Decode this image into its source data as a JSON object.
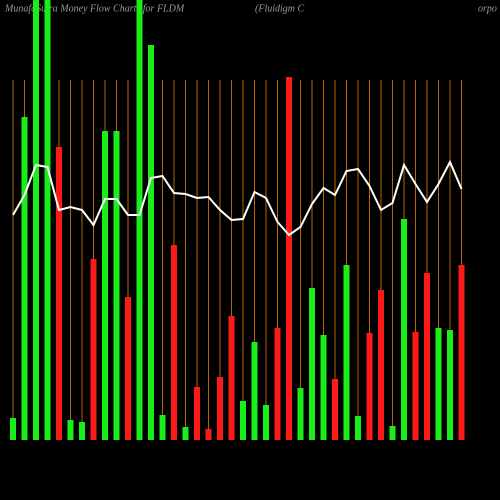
{
  "chart_data": {
    "type": "bar",
    "title": "MunafaSutra  Money Flow  Charts for FLDM",
    "subtitle": "(Fluidigm C",
    "subtitle2": "orpo",
    "categories": [
      null,
      null,
      null,
      null,
      null,
      null,
      null,
      null,
      null,
      null,
      null,
      null,
      null,
      null,
      null,
      null,
      null,
      null,
      null,
      null,
      null,
      null,
      null,
      null,
      null,
      null,
      null,
      null,
      null,
      null,
      null,
      null,
      null,
      null,
      null,
      null,
      null,
      null,
      null,
      null
    ],
    "values": [
      22,
      323,
      440,
      440,
      293,
      20,
      18,
      181,
      309,
      309,
      143,
      440,
      395,
      25,
      195,
      13,
      53,
      11,
      63,
      124,
      39,
      98,
      35,
      112,
      363,
      52,
      152,
      105,
      61,
      175,
      24,
      107,
      150,
      14,
      221,
      108,
      167,
      112,
      110,
      175
    ],
    "colors": [
      "#1aee1a",
      "#1aee1a",
      "#1aee1a",
      "#1aee1a",
      "#ff1a1a",
      "#1aee1a",
      "#1aee1a",
      "#ff1a1a",
      "#1aee1a",
      "#1aee1a",
      "#ff1a1a",
      "#1aee1a",
      "#1aee1a",
      "#1aee1a",
      "#ff1a1a",
      "#1aee1a",
      "#ff1a1a",
      "#ff1a1a",
      "#ff1a1a",
      "#ff1a1a",
      "#1aee1a",
      "#1aee1a",
      "#1aee1a",
      "#ff1a1a",
      "#ff1a1a",
      "#1aee1a",
      "#1aee1a",
      "#1aee1a",
      "#ff1a1a",
      "#1aee1a",
      "#1aee1a",
      "#ff1a1a",
      "#ff1a1a",
      "#1aee1a",
      "#1aee1a",
      "#ff1a1a",
      "#ff1a1a",
      "#1aee1a",
      "#1aee1a",
      "#ff1a1a"
    ],
    "line": {
      "color": "#ffffff",
      "values": [
        225,
        245,
        275,
        273,
        230,
        233,
        230,
        215,
        241,
        241,
        225,
        225,
        262,
        264,
        247,
        246,
        242,
        243,
        230,
        220,
        221,
        248,
        242,
        218,
        205,
        213,
        236,
        252,
        245,
        269,
        271,
        254,
        230,
        237,
        275,
        256,
        238,
        256,
        278,
        251
      ]
    },
    "ylim": [
      0,
      440
    ],
    "grid": true,
    "grid_color": "#b8650a"
  }
}
